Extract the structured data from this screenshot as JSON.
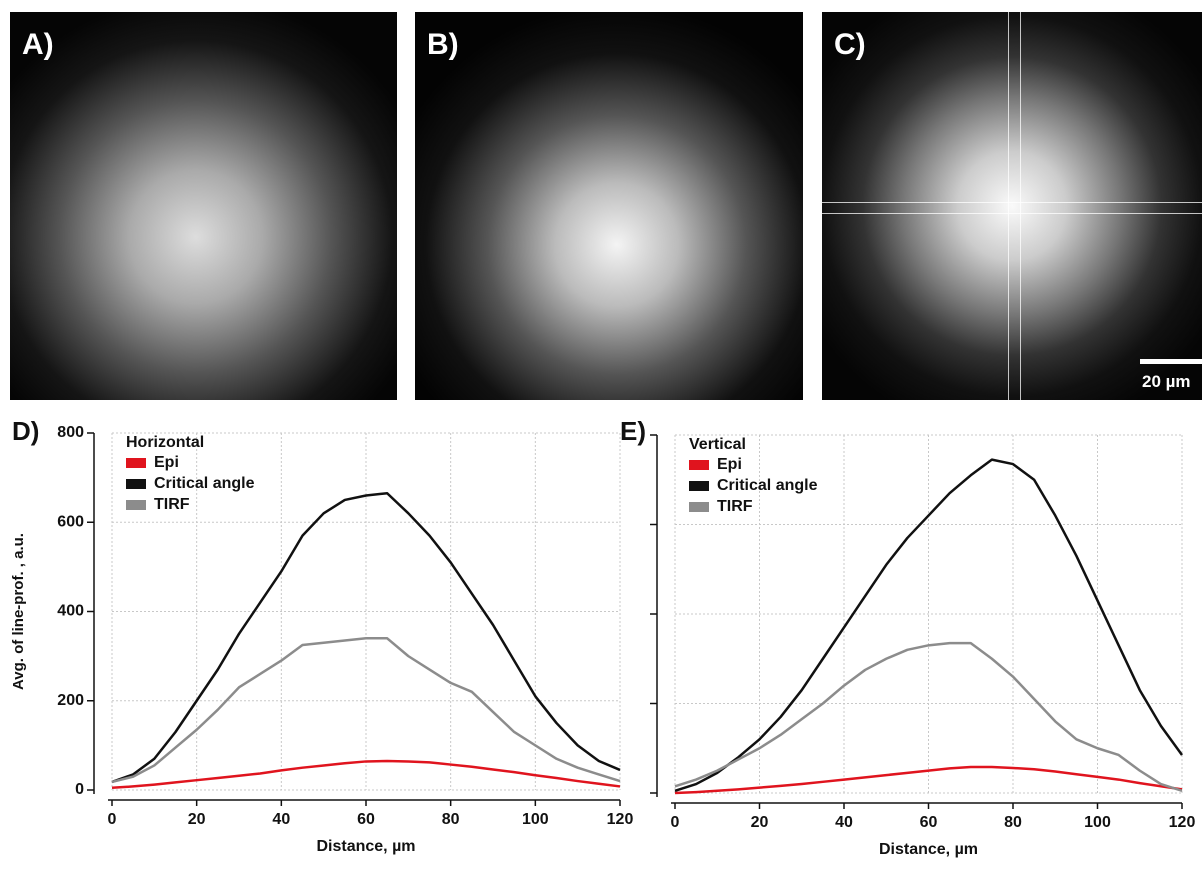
{
  "images": [
    {
      "label": "A)"
    },
    {
      "label": "B)"
    },
    {
      "label": "C)"
    }
  ],
  "scale_bar": "20 µm",
  "chart_data": [
    {
      "type": "line",
      "label": "D)",
      "legend_title": "Horizontal",
      "xlabel": "Distance, µm",
      "ylabel": "Avg. of line-prof. , a.u.",
      "x": [
        0,
        5,
        10,
        15,
        20,
        25,
        30,
        35,
        40,
        45,
        50,
        55,
        60,
        65,
        70,
        75,
        80,
        85,
        90,
        95,
        100,
        105,
        110,
        115,
        120
      ],
      "series": [
        {
          "name": "Epi",
          "color": "#e0141e",
          "values": [
            5,
            8,
            12,
            17,
            22,
            27,
            32,
            37,
            44,
            50,
            55,
            60,
            64,
            65,
            64,
            62,
            57,
            52,
            46,
            40,
            33,
            27,
            20,
            14,
            8
          ]
        },
        {
          "name": "Critical angle",
          "color": "#111111",
          "values": [
            18,
            35,
            70,
            130,
            200,
            270,
            350,
            420,
            490,
            570,
            620,
            650,
            660,
            665,
            620,
            570,
            510,
            440,
            370,
            290,
            210,
            150,
            100,
            65,
            45
          ]
        },
        {
          "name": "TIRF",
          "color": "#8c8c8c",
          "values": [
            18,
            30,
            55,
            95,
            135,
            180,
            230,
            260,
            290,
            325,
            330,
            335,
            340,
            340,
            300,
            270,
            240,
            220,
            175,
            130,
            100,
            70,
            50,
            35,
            20
          ]
        }
      ],
      "xlim": [
        0,
        120
      ],
      "xticks": [
        0,
        20,
        40,
        60,
        80,
        100,
        120
      ],
      "ylim": [
        0,
        800
      ],
      "yticks": [
        0,
        200,
        400,
        600,
        800
      ],
      "show_ytick_labels": true,
      "grid": true,
      "legend": "upper-left"
    },
    {
      "type": "line",
      "label": "E)",
      "legend_title": "Vertical",
      "xlabel": "Distance, µm",
      "x": [
        0,
        5,
        10,
        15,
        20,
        25,
        30,
        35,
        40,
        45,
        50,
        55,
        60,
        65,
        70,
        75,
        80,
        85,
        90,
        95,
        100,
        105,
        110,
        115,
        120
      ],
      "series": [
        {
          "name": "Epi",
          "color": "#e0141e",
          "values": [
            0,
            2,
            5,
            8,
            12,
            16,
            20,
            25,
            30,
            35,
            40,
            45,
            50,
            55,
            58,
            58,
            56,
            53,
            48,
            42,
            36,
            30,
            22,
            15,
            8
          ]
        },
        {
          "name": "Critical angle",
          "color": "#111111",
          "values": [
            5,
            20,
            45,
            80,
            120,
            170,
            230,
            300,
            370,
            440,
            510,
            570,
            620,
            670,
            710,
            745,
            735,
            700,
            620,
            530,
            430,
            330,
            230,
            150,
            85
          ]
        },
        {
          "name": "TIRF",
          "color": "#8c8c8c",
          "values": [
            15,
            30,
            50,
            75,
            100,
            130,
            165,
            200,
            240,
            275,
            300,
            320,
            330,
            335,
            335,
            300,
            260,
            210,
            160,
            120,
            100,
            85,
            50,
            20,
            5
          ]
        }
      ],
      "xlim": [
        0,
        120
      ],
      "xticks": [
        0,
        20,
        40,
        60,
        80,
        100,
        120
      ],
      "ylim": [
        0,
        800
      ],
      "yticks": [
        0,
        200,
        400,
        600,
        800
      ],
      "show_ytick_labels": false,
      "grid": true,
      "legend": "upper-left"
    }
  ]
}
